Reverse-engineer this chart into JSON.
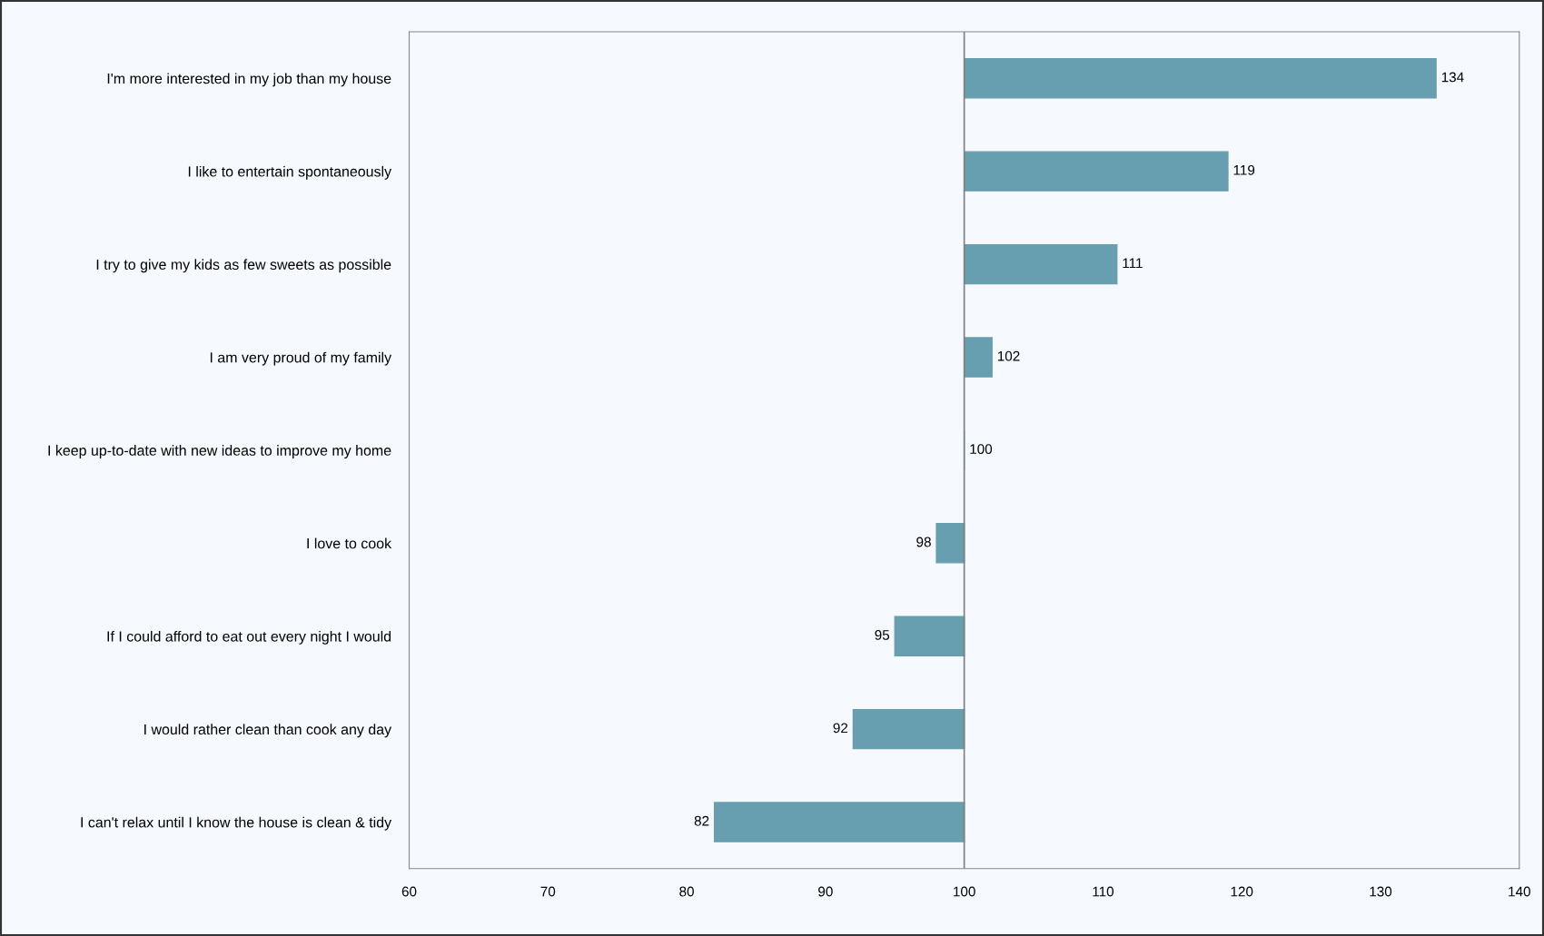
{
  "chart_data": {
    "type": "bar",
    "orientation": "horizontal",
    "categories": [
      "I'm more interested in my job than my house",
      "I like to entertain spontaneously",
      "I try to give my kids as few sweets as possible",
      "I am very proud of my family",
      "I keep up-to-date with new ideas to improve my home",
      "I love to cook",
      "If I could afford to eat out every night I would",
      "I would rather clean than cook any day",
      "I can't relax until I know the house is clean & tidy"
    ],
    "base": [
      100,
      100,
      100,
      100,
      100,
      100,
      100,
      100,
      100
    ],
    "values": [
      34,
      19,
      11,
      2,
      0,
      -2,
      -5,
      -8,
      -18
    ],
    "value_labels": [
      "134",
      "119",
      "111",
      "102",
      "100",
      "98",
      "95",
      "92",
      "82"
    ],
    "color": "#679eb0",
    "xlim": [
      60,
      140
    ],
    "xticks": [
      60,
      70,
      80,
      90,
      100,
      110,
      120,
      130,
      140
    ],
    "ref_lines": [
      {
        "axis": "x",
        "value": 100,
        "color": "#808080"
      }
    ],
    "grid": false,
    "legend": false
  }
}
